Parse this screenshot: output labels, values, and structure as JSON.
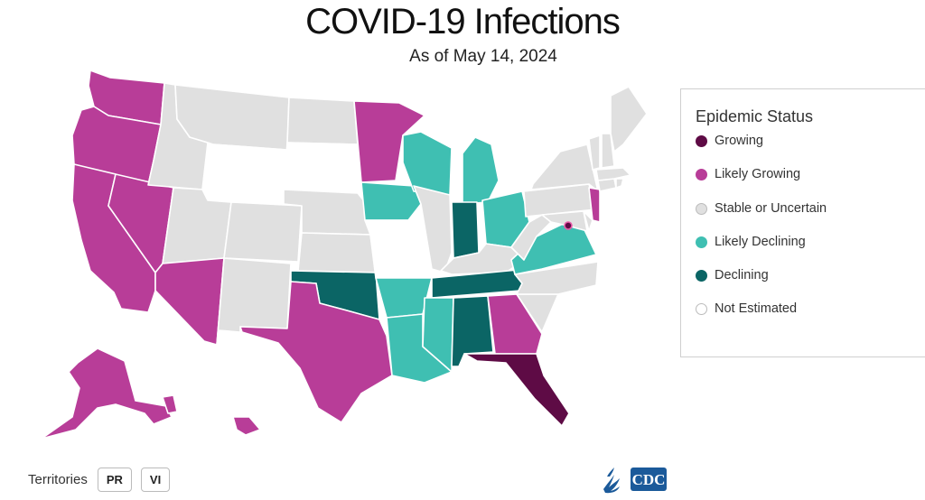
{
  "header": {
    "title": "COVID-19 Infections",
    "subtitle": "As of May 14, 2024"
  },
  "colors": {
    "growing": "#5e0b45",
    "likely_growing": "#b83d98",
    "stable": "#e0e0e0",
    "likely_declining": "#3fbfb2",
    "declining": "#0b6565",
    "not_estimated": "#ffffff"
  },
  "legend": {
    "title": "Epidemic Status",
    "items": [
      {
        "key": "growing",
        "label": "Growing"
      },
      {
        "key": "likely_growing",
        "label": "Likely Growing"
      },
      {
        "key": "stable",
        "label": "Stable or Uncertain"
      },
      {
        "key": "likely_declining",
        "label": "Likely Declining"
      },
      {
        "key": "declining",
        "label": "Declining"
      },
      {
        "key": "not_estimated",
        "label": "Not Estimated"
      }
    ]
  },
  "map_data": {
    "type": "choropleth",
    "region": "United States",
    "states": {
      "WA": "likely_growing",
      "OR": "likely_growing",
      "CA": "likely_growing",
      "NV": "likely_growing",
      "AZ": "likely_growing",
      "TX": "likely_growing",
      "MN": "likely_growing",
      "GA": "likely_growing",
      "NJ": "likely_growing",
      "AK": "likely_growing",
      "HI": "likely_growing",
      "FL": "growing",
      "DC": "growing",
      "ID": "stable",
      "MT": "stable",
      "ND": "stable",
      "UT": "stable",
      "CO": "stable",
      "NM": "stable",
      "NE": "stable",
      "KS": "stable",
      "IL": "stable",
      "KY": "stable",
      "WV": "stable",
      "PA": "stable",
      "NY": "stable",
      "NC": "stable",
      "SC": "stable",
      "VT": "stable",
      "NH": "stable",
      "ME": "stable",
      "MA": "stable",
      "CT": "stable",
      "RI": "stable",
      "MD": "stable",
      "DE": "stable",
      "WY": "not_estimated",
      "SD": "not_estimated",
      "MO": "not_estimated",
      "WI": "likely_declining",
      "MI": "likely_declining",
      "IA": "likely_declining",
      "OH": "likely_declining",
      "AR": "likely_declining",
      "LA": "likely_declining",
      "MS": "likely_declining",
      "VA": "likely_declining",
      "OK": "declining",
      "TN": "declining",
      "AL": "declining",
      "IN": "declining"
    }
  },
  "territories": {
    "label": "Territories",
    "buttons": [
      {
        "id": "PR",
        "label": "PR"
      },
      {
        "id": "VI",
        "label": "VI"
      }
    ]
  },
  "footer": {
    "logo_text": "CDC"
  }
}
